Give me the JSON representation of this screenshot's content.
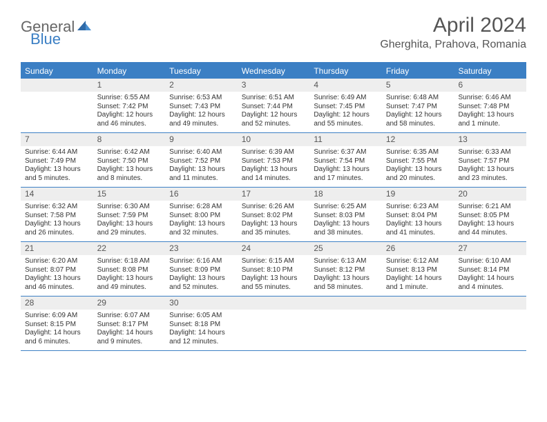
{
  "brand": {
    "part1": "General",
    "part2": "Blue"
  },
  "title": "April 2024",
  "location": "Gherghita, Prahova, Romania",
  "colors": {
    "header_bar": "#3b7fc4",
    "day_header_bg": "#eeeeee",
    "text": "#333333",
    "title_text": "#555555",
    "background": "#ffffff"
  },
  "weekdays": [
    "Sunday",
    "Monday",
    "Tuesday",
    "Wednesday",
    "Thursday",
    "Friday",
    "Saturday"
  ],
  "weeks": [
    [
      {
        "day": null
      },
      {
        "day": 1,
        "sunrise": "Sunrise: 6:55 AM",
        "sunset": "Sunset: 7:42 PM",
        "daylight": "Daylight: 12 hours and 46 minutes."
      },
      {
        "day": 2,
        "sunrise": "Sunrise: 6:53 AM",
        "sunset": "Sunset: 7:43 PM",
        "daylight": "Daylight: 12 hours and 49 minutes."
      },
      {
        "day": 3,
        "sunrise": "Sunrise: 6:51 AM",
        "sunset": "Sunset: 7:44 PM",
        "daylight": "Daylight: 12 hours and 52 minutes."
      },
      {
        "day": 4,
        "sunrise": "Sunrise: 6:49 AM",
        "sunset": "Sunset: 7:45 PM",
        "daylight": "Daylight: 12 hours and 55 minutes."
      },
      {
        "day": 5,
        "sunrise": "Sunrise: 6:48 AM",
        "sunset": "Sunset: 7:47 PM",
        "daylight": "Daylight: 12 hours and 58 minutes."
      },
      {
        "day": 6,
        "sunrise": "Sunrise: 6:46 AM",
        "sunset": "Sunset: 7:48 PM",
        "daylight": "Daylight: 13 hours and 1 minute."
      }
    ],
    [
      {
        "day": 7,
        "sunrise": "Sunrise: 6:44 AM",
        "sunset": "Sunset: 7:49 PM",
        "daylight": "Daylight: 13 hours and 5 minutes."
      },
      {
        "day": 8,
        "sunrise": "Sunrise: 6:42 AM",
        "sunset": "Sunset: 7:50 PM",
        "daylight": "Daylight: 13 hours and 8 minutes."
      },
      {
        "day": 9,
        "sunrise": "Sunrise: 6:40 AM",
        "sunset": "Sunset: 7:52 PM",
        "daylight": "Daylight: 13 hours and 11 minutes."
      },
      {
        "day": 10,
        "sunrise": "Sunrise: 6:39 AM",
        "sunset": "Sunset: 7:53 PM",
        "daylight": "Daylight: 13 hours and 14 minutes."
      },
      {
        "day": 11,
        "sunrise": "Sunrise: 6:37 AM",
        "sunset": "Sunset: 7:54 PM",
        "daylight": "Daylight: 13 hours and 17 minutes."
      },
      {
        "day": 12,
        "sunrise": "Sunrise: 6:35 AM",
        "sunset": "Sunset: 7:55 PM",
        "daylight": "Daylight: 13 hours and 20 minutes."
      },
      {
        "day": 13,
        "sunrise": "Sunrise: 6:33 AM",
        "sunset": "Sunset: 7:57 PM",
        "daylight": "Daylight: 13 hours and 23 minutes."
      }
    ],
    [
      {
        "day": 14,
        "sunrise": "Sunrise: 6:32 AM",
        "sunset": "Sunset: 7:58 PM",
        "daylight": "Daylight: 13 hours and 26 minutes."
      },
      {
        "day": 15,
        "sunrise": "Sunrise: 6:30 AM",
        "sunset": "Sunset: 7:59 PM",
        "daylight": "Daylight: 13 hours and 29 minutes."
      },
      {
        "day": 16,
        "sunrise": "Sunrise: 6:28 AM",
        "sunset": "Sunset: 8:00 PM",
        "daylight": "Daylight: 13 hours and 32 minutes."
      },
      {
        "day": 17,
        "sunrise": "Sunrise: 6:26 AM",
        "sunset": "Sunset: 8:02 PM",
        "daylight": "Daylight: 13 hours and 35 minutes."
      },
      {
        "day": 18,
        "sunrise": "Sunrise: 6:25 AM",
        "sunset": "Sunset: 8:03 PM",
        "daylight": "Daylight: 13 hours and 38 minutes."
      },
      {
        "day": 19,
        "sunrise": "Sunrise: 6:23 AM",
        "sunset": "Sunset: 8:04 PM",
        "daylight": "Daylight: 13 hours and 41 minutes."
      },
      {
        "day": 20,
        "sunrise": "Sunrise: 6:21 AM",
        "sunset": "Sunset: 8:05 PM",
        "daylight": "Daylight: 13 hours and 44 minutes."
      }
    ],
    [
      {
        "day": 21,
        "sunrise": "Sunrise: 6:20 AM",
        "sunset": "Sunset: 8:07 PM",
        "daylight": "Daylight: 13 hours and 46 minutes."
      },
      {
        "day": 22,
        "sunrise": "Sunrise: 6:18 AM",
        "sunset": "Sunset: 8:08 PM",
        "daylight": "Daylight: 13 hours and 49 minutes."
      },
      {
        "day": 23,
        "sunrise": "Sunrise: 6:16 AM",
        "sunset": "Sunset: 8:09 PM",
        "daylight": "Daylight: 13 hours and 52 minutes."
      },
      {
        "day": 24,
        "sunrise": "Sunrise: 6:15 AM",
        "sunset": "Sunset: 8:10 PM",
        "daylight": "Daylight: 13 hours and 55 minutes."
      },
      {
        "day": 25,
        "sunrise": "Sunrise: 6:13 AM",
        "sunset": "Sunset: 8:12 PM",
        "daylight": "Daylight: 13 hours and 58 minutes."
      },
      {
        "day": 26,
        "sunrise": "Sunrise: 6:12 AM",
        "sunset": "Sunset: 8:13 PM",
        "daylight": "Daylight: 14 hours and 1 minute."
      },
      {
        "day": 27,
        "sunrise": "Sunrise: 6:10 AM",
        "sunset": "Sunset: 8:14 PM",
        "daylight": "Daylight: 14 hours and 4 minutes."
      }
    ],
    [
      {
        "day": 28,
        "sunrise": "Sunrise: 6:09 AM",
        "sunset": "Sunset: 8:15 PM",
        "daylight": "Daylight: 14 hours and 6 minutes."
      },
      {
        "day": 29,
        "sunrise": "Sunrise: 6:07 AM",
        "sunset": "Sunset: 8:17 PM",
        "daylight": "Daylight: 14 hours and 9 minutes."
      },
      {
        "day": 30,
        "sunrise": "Sunrise: 6:05 AM",
        "sunset": "Sunset: 8:18 PM",
        "daylight": "Daylight: 14 hours and 12 minutes."
      },
      {
        "day": null
      },
      {
        "day": null
      },
      {
        "day": null
      },
      {
        "day": null
      }
    ]
  ]
}
